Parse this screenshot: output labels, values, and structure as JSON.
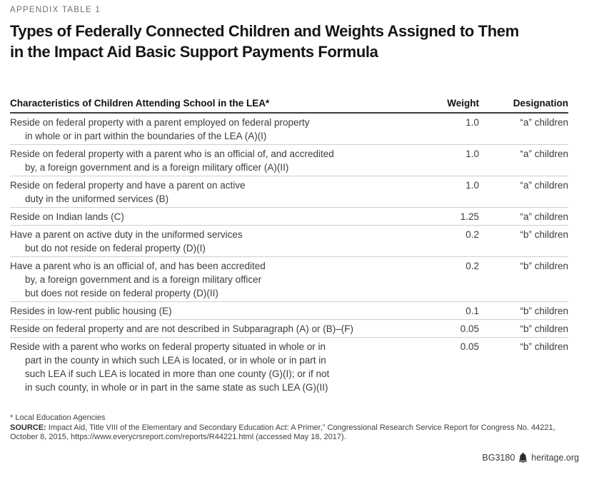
{
  "header": {
    "eyebrow": "APPENDIX TABLE 1",
    "title_lines": [
      "Types of Federally Connected Children and Weights Assigned to Them",
      "in the Impact Aid Basic Support Payments Formula"
    ]
  },
  "table": {
    "headers": [
      "Characteristics of Children Attending School in the LEA*",
      "Weight",
      "Designation"
    ],
    "rows": [
      {
        "lines": [
          "Reside on federal property with a parent employed on federal property",
          "in whole or in part within the boundaries of the LEA (A)(I)"
        ],
        "weight": "1.0",
        "designation": "“a” children"
      },
      {
        "lines": [
          "Reside on federal property with a parent who is an official of, and accredited",
          "by, a foreign government and is a foreign military officer (A)(II)"
        ],
        "weight": "1.0",
        "designation": "“a” children"
      },
      {
        "lines": [
          "Reside on federal property and have a parent on active",
          "duty in the uniformed services (B)"
        ],
        "weight": "1.0",
        "designation": "“a” children"
      },
      {
        "lines": [
          "Reside on Indian lands (C)"
        ],
        "weight": "1.25",
        "designation": "“a” children"
      },
      {
        "lines": [
          "Have a parent on active duty in the uniformed services",
          "but do not reside on federal property (D)(I)"
        ],
        "weight": "0.2",
        "designation": "“b” children"
      },
      {
        "lines": [
          "Have a parent who is an official of, and has been accredited",
          "by, a foreign government and is a foreign military officer",
          "but does not reside on federal property (D)(II)"
        ],
        "weight": "0.2",
        "designation": "“b” children"
      },
      {
        "lines": [
          "Resides in low-rent public housing (E)"
        ],
        "weight": "0.1",
        "designation": "“b” children"
      },
      {
        "lines": [
          "Reside on federal property and are not described in Subparagraph (A) or (B)–(F)"
        ],
        "weight": "0.05",
        "designation": "“b” children"
      },
      {
        "lines": [
          "Reside with a parent who works on federal property situated in whole or in",
          "part in the county in which such LEA is located, or in whole or in part in",
          "such LEA if such LEA is located in more than one county (G)(I); or if not",
          "in such county, in whole or in part in the same state as such LEA (G)(II)"
        ],
        "weight": "0.05",
        "designation": "“b” children"
      }
    ]
  },
  "footnotes": {
    "asterisk_note": "* Local Education Agencies",
    "source_label": "SOURCE:",
    "source_text": " Impact Aid, Title VIII of the Elementary and Secondary Education Act: A Primer,” Congressional Research Service Report for Congress No. 44221, October 8, 2015, https://www.everycrsreport.com/reports/R44221.html (accessed May 18, 2017)."
  },
  "footer": {
    "doc_id": "BG3180",
    "site": "heritage.org",
    "icon": "heritage-bell-icon"
  },
  "colors": {
    "header_rule": "#3c3c3c",
    "row_rule": "#cfcfcf",
    "body_text": "#3c3c3c",
    "heading_text": "#161616",
    "eyebrow_text": "#6f6f6f"
  }
}
